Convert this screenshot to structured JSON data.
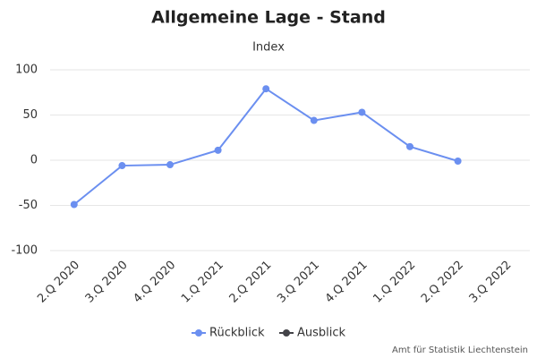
{
  "chart_data": {
    "type": "line",
    "title": "Allgemeine Lage - Stand",
    "subtitle": "Index",
    "categories": [
      "2.Q 2020",
      "3.Q 2020",
      "4.Q 2020",
      "1.Q 2021",
      "2.Q 2021",
      "3.Q 2021",
      "4.Q 2021",
      "1.Q 2022",
      "2.Q 2022",
      "3.Q 2022"
    ],
    "series": [
      {
        "name": "Rückblick",
        "color": "#6b8ff0",
        "values": [
          -49,
          -6,
          -5,
          11,
          79,
          44,
          53,
          15,
          -1,
          null
        ]
      },
      {
        "name": "Ausblick",
        "color": "#434348",
        "values": [
          null,
          null,
          null,
          null,
          null,
          null,
          null,
          null,
          null,
          null
        ]
      }
    ],
    "ylim": [
      -100,
      100
    ],
    "yticks": [
      -100,
      -50,
      0,
      50,
      100
    ],
    "grid": true,
    "credits": "Amt für Statistik Liechtenstein"
  }
}
